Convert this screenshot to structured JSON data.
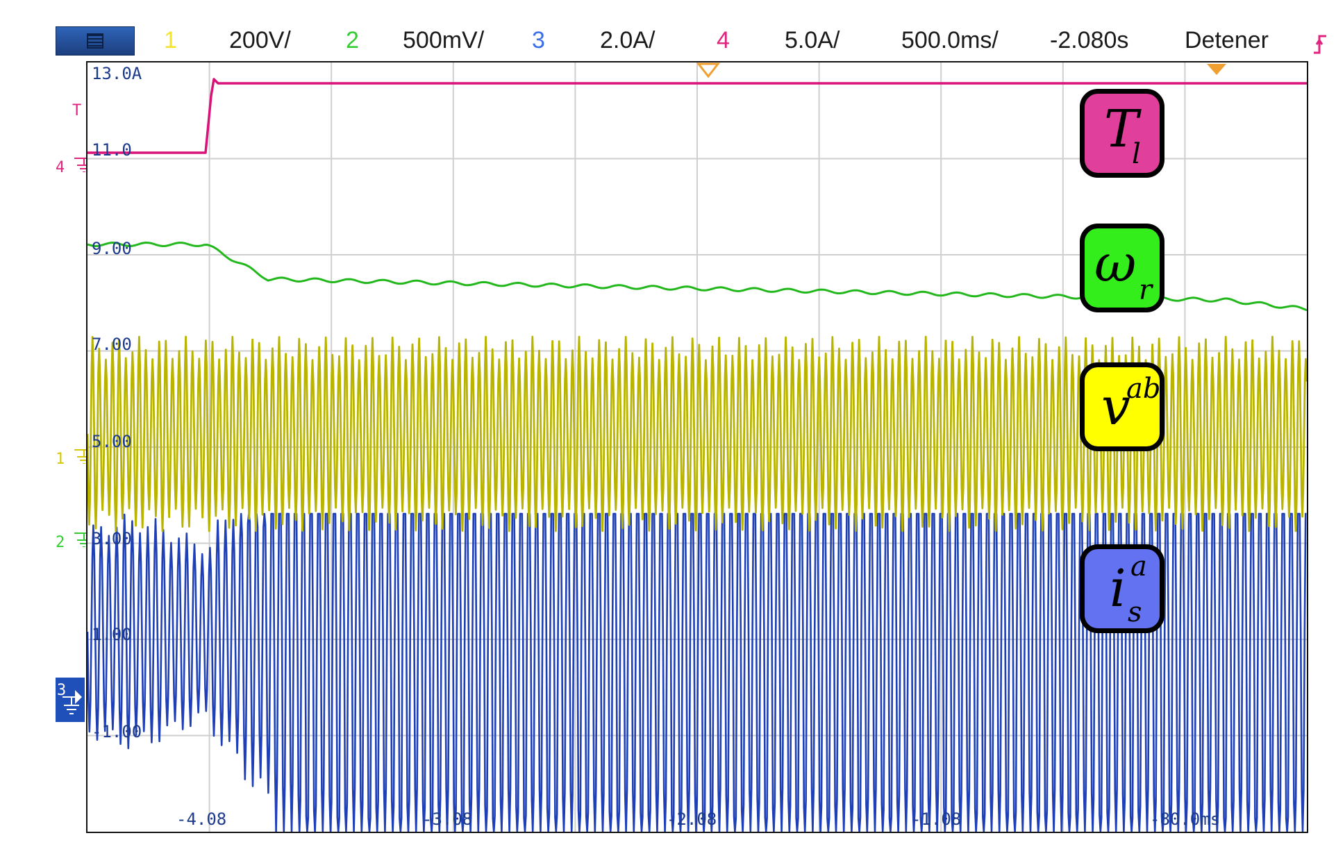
{
  "header": {
    "menu_icon": "hamburger-menu-icon",
    "ch1": {
      "num": "1",
      "scale": "200V/",
      "color": "#f2e52c"
    },
    "ch2": {
      "num": "2",
      "scale": "500mV/",
      "color": "#33cc33"
    },
    "ch3": {
      "num": "3",
      "scale": "2.0A/",
      "color": "#3b6fe8"
    },
    "ch4": {
      "num": "4",
      "scale": "5.0A/",
      "color": "#e0237e"
    },
    "timebase": "500.0ms/",
    "delay": "-2.080s",
    "run_state": "Detener",
    "trigger_icon": "trigger-edge-icon"
  },
  "screen": {
    "y_labels": [
      "13.0A",
      "11.0",
      "9.00",
      "7.00",
      "5.00",
      "3.00",
      "1.00",
      "-1.00"
    ],
    "x_labels": [
      "-4.08",
      "-3.08",
      "-2.08",
      "-1.08",
      "-80.0ms"
    ],
    "markers": {
      "trigger_level": "T",
      "ch4": "4",
      "ch1": "1",
      "ch2": "2",
      "ch3": "3"
    }
  },
  "legend": {
    "torque": {
      "symbol": "T",
      "sub": "l",
      "color": "#e0409b"
    },
    "speed": {
      "symbol": "ω",
      "sub": "r",
      "color": "#33ee1a"
    },
    "voltage": {
      "symbol": "v",
      "sup": "ab",
      "color": "#ffff00"
    },
    "current": {
      "symbol": "i",
      "sup": "a",
      "sub": "s",
      "color": "#6272f0"
    }
  },
  "colors": {
    "trace_magenta": "#d9127a",
    "trace_green": "#22b81c",
    "trace_yellow": "#b8b400",
    "trace_blue": "#1e3fb5",
    "grid": "#cfcfcf"
  }
}
